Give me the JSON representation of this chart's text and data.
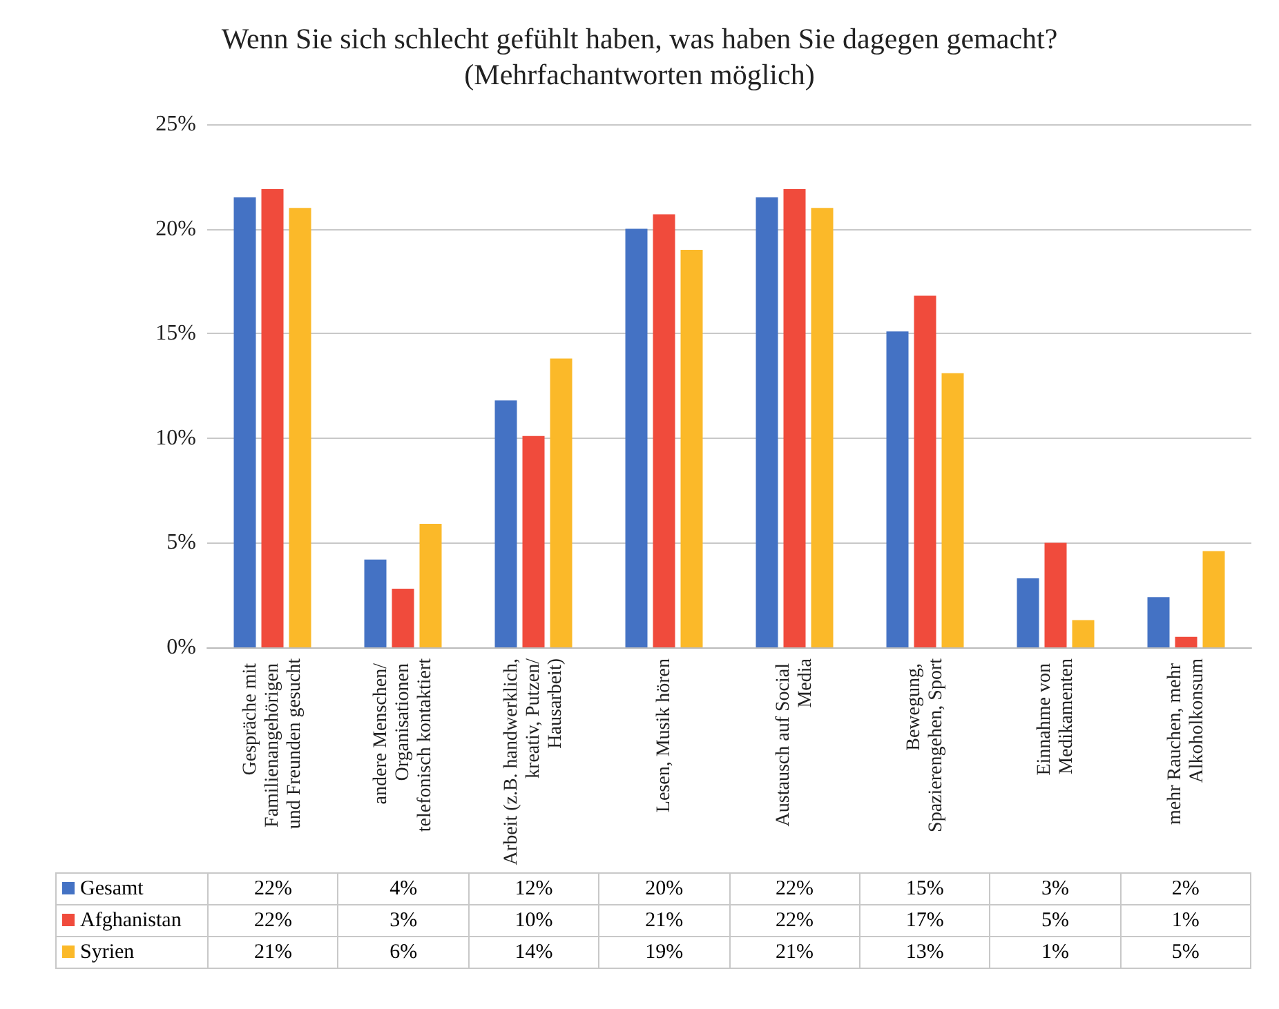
{
  "chart_data": {
    "type": "bar",
    "title": "Wenn Sie sich schlecht gefühlt haben, was haben Sie dagegen gemacht?\n(Mehrfachantworten möglich)",
    "categories": [
      "Gespräche mit Familienangehörigen und Freunden gesucht",
      "andere Menschen/ Organisationen telefonisch kontaktiert",
      "Arbeit (z.B. handwerklich, kreativ, Putzen/Hausarbeit)",
      "Lesen, Musik hören",
      "Austausch auf Social Media",
      "Bewegung, Spazierengehen, Sport",
      "Einnahme von Medikamenten",
      "mehr Rauchen, mehr Alkoholkonsum"
    ],
    "series": [
      {
        "name": "Gesamt",
        "color": "#4472c4",
        "values": [
          21.5,
          4.2,
          11.8,
          20.0,
          21.5,
          15.1,
          3.3,
          2.4
        ],
        "value_labels": [
          "22%",
          "4%",
          "12%",
          "20%",
          "22%",
          "15%",
          "3%",
          "2%"
        ]
      },
      {
        "name": "Afghanistan",
        "color": "#f04b3c",
        "values": [
          21.9,
          2.8,
          10.1,
          20.7,
          21.9,
          16.8,
          5.0,
          0.5
        ],
        "value_labels": [
          "22%",
          "3%",
          "10%",
          "21%",
          "22%",
          "17%",
          "5%",
          "1%"
        ]
      },
      {
        "name": "Syrien",
        "color": "#fbb929",
        "values": [
          21.0,
          5.9,
          13.8,
          19.0,
          21.0,
          13.1,
          1.3,
          4.6
        ],
        "value_labels": [
          "21%",
          "6%",
          "14%",
          "19%",
          "21%",
          "13%",
          "1%",
          "5%"
        ]
      }
    ],
    "ylim": [
      0,
      25
    ],
    "yticks": [
      {
        "value": 0,
        "label": "0%"
      },
      {
        "value": 5,
        "label": "5%"
      },
      {
        "value": 10,
        "label": "10%"
      },
      {
        "value": 15,
        "label": "15%"
      },
      {
        "value": 20,
        "label": "20%"
      },
      {
        "value": 25,
        "label": "25%"
      }
    ],
    "grid": "y",
    "legend": "bottom"
  }
}
